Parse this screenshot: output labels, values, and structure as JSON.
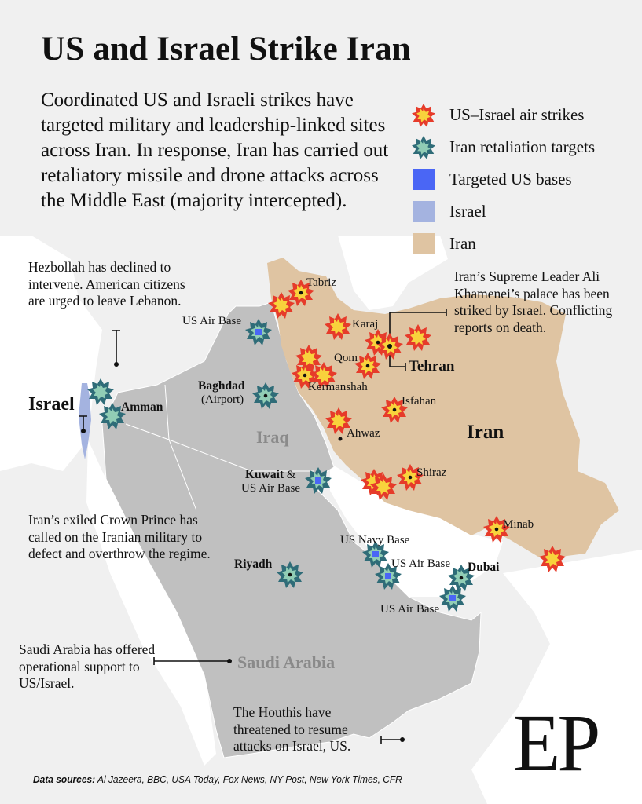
{
  "header": {
    "title": "US and Israel Strike Iran",
    "intro": "Coordinated US and Israeli strikes have targeted military and leadership-linked sites across Iran. In response, Iran has carried out retaliatory missile and drone attacks across the Middle East (majority intercepted)."
  },
  "legend": [
    {
      "label": "US–Israel air strikes",
      "icon": "red-burst-icon"
    },
    {
      "label": "Iran retaliation targets",
      "icon": "teal-burst-icon"
    },
    {
      "label": "Targeted US bases",
      "color": "#4a66f5"
    },
    {
      "label": "Israel",
      "color": "#a4b3e0"
    },
    {
      "label": "Iran",
      "color": "#dfc4a2"
    }
  ],
  "colors": {
    "strike_outer": "#e63b2a",
    "strike_inner": "#f8d23c",
    "retaliation_outer": "#2f6c78",
    "retaliation_inner": "#91cdb5",
    "us_base": "#4a66f5",
    "israel": "#a4b3e0",
    "iran": "#dfc4a2",
    "region_gray": "#c0c0c0",
    "background_land": "#f0f0f0"
  },
  "annotations": {
    "hezbollah": "Hezbollah has declined to intervene. American citizens are urged to leave Lebanon.",
    "khamenei": "Iran’s Supreme Leader Ali Khamenei’s palace has been striked by Israel. Conflicting reports on death.",
    "crown_prince": "Iran’s exiled Crown Prince has called on the Iranian military to defect and overthrow the regime.",
    "saudi": "Saudi Arabia has offered operational support to US/Israel.",
    "houthis": "The Houthis have threatened to resume attacks on Israel, US."
  },
  "labels": {
    "countries": {
      "israel": "Israel",
      "iraq": "Iraq",
      "iran": "Iran",
      "saudi": "Saudi Arabia"
    },
    "cities": {
      "tabriz": "Tabriz",
      "karaj": "Karaj",
      "qom": "Qom",
      "tehran": "Tehran",
      "kermanshah": "Kermanshah",
      "isfahan": "Isfahan",
      "ahwaz": "Ahwaz",
      "shiraz": "Shiraz",
      "minab": "Minab",
      "amman": "Amman",
      "baghdad": "Baghdad",
      "baghdad_sub": "(Airport)",
      "kuwait": "Kuwait",
      "kuwait_amp": " &",
      "kuwait_sub": "US Air Base",
      "riyadh": "Riyadh",
      "dubai": "Dubai"
    },
    "bases": {
      "iraq_north": "US Air Base",
      "navy": "US Navy Base",
      "qatar": "US Air Base",
      "uae": "US Air Base"
    }
  },
  "footer": {
    "sources_label": "Data sources:",
    "sources": " Al Jazeera, BBC, USA Today, Fox News, NY Post, New York Times, CFR",
    "logo": "EP"
  }
}
